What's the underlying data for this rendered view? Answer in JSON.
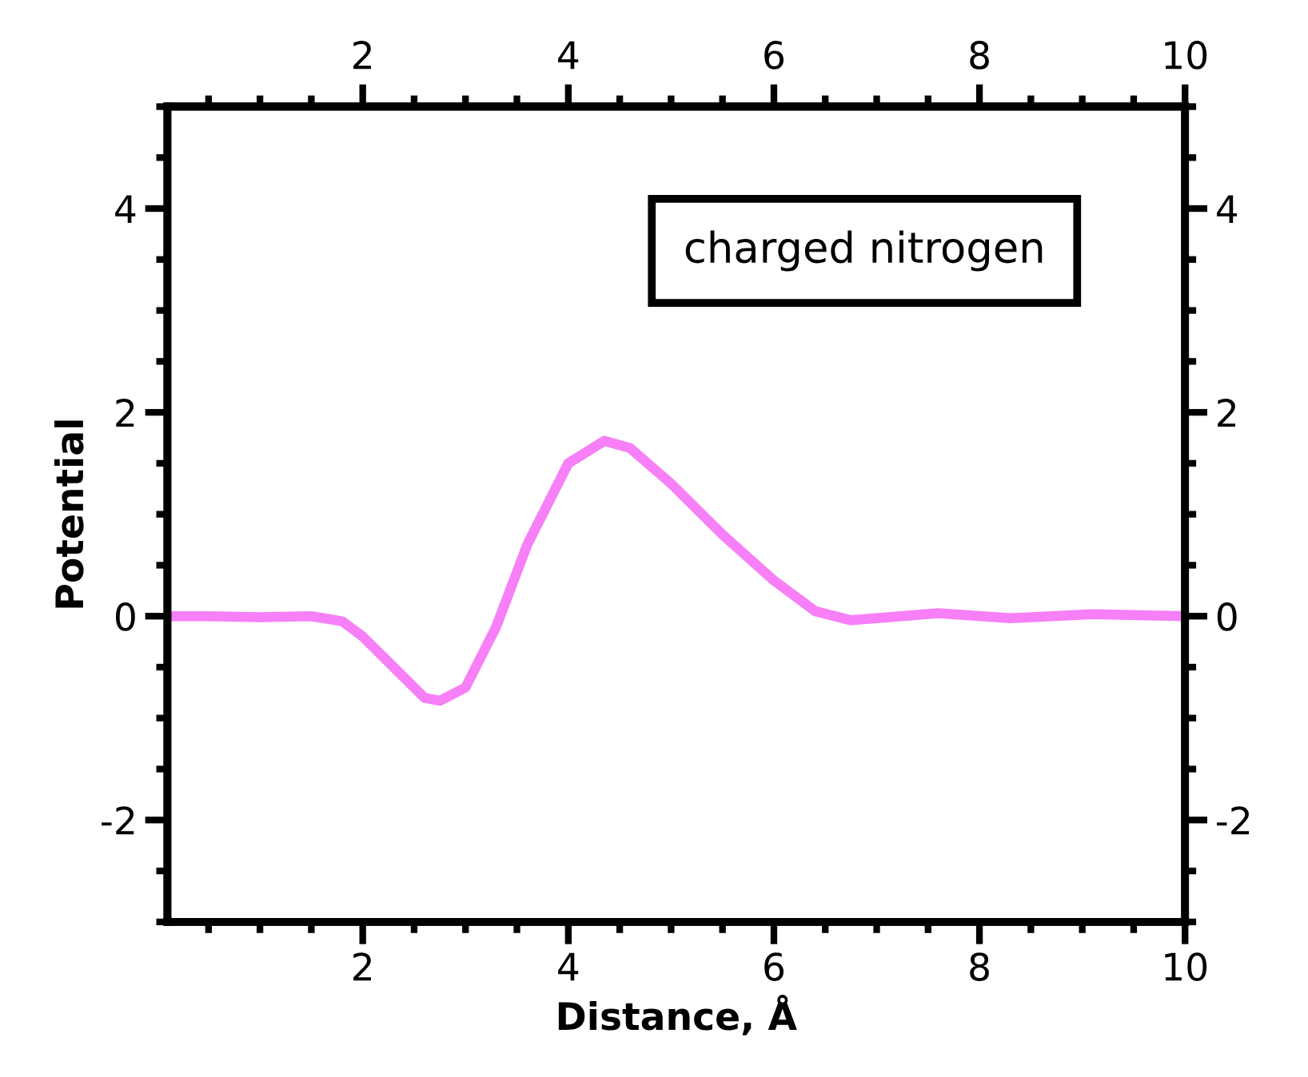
{
  "chart_data": {
    "type": "line",
    "xlabel": "Distance, Å",
    "ylabel": "Potential",
    "x": [
      0.1,
      0.5,
      1.0,
      1.5,
      1.8,
      2.0,
      2.3,
      2.6,
      2.75,
      3.0,
      3.3,
      3.6,
      4.0,
      4.35,
      4.6,
      5.0,
      5.5,
      6.0,
      6.4,
      6.75,
      7.0,
      7.6,
      8.3,
      9.1,
      10.0
    ],
    "series": [
      {
        "color": "#f77ff7",
        "values": [
          0.0,
          0.0,
          -0.01,
          0.0,
          -0.05,
          -0.2,
          -0.5,
          -0.8,
          -0.83,
          -0.7,
          -0.1,
          0.7,
          1.5,
          1.72,
          1.65,
          1.3,
          0.8,
          0.35,
          0.05,
          -0.04,
          -0.02,
          0.03,
          -0.02,
          0.02,
          0.0
        ]
      }
    ],
    "xlim": [
      0.1,
      10
    ],
    "xticks": [
      2,
      4,
      6,
      8,
      10
    ],
    "x2lim": [
      0.1,
      10
    ],
    "x2ticks": [
      2,
      4,
      6,
      8,
      10
    ],
    "ylim": [
      -3,
      5
    ],
    "yticks": [
      {
        "value": -2,
        "label": "-2"
      },
      0,
      2,
      4
    ],
    "y2lim": [
      -3,
      5
    ],
    "y2ticks": [
      {
        "value": -2,
        "label": "-2"
      },
      0,
      2,
      4
    ],
    "annotations": [
      "charged nitrogen"
    ],
    "grid": false,
    "legend": false,
    "marker": "none",
    "line_style": "solid"
  }
}
